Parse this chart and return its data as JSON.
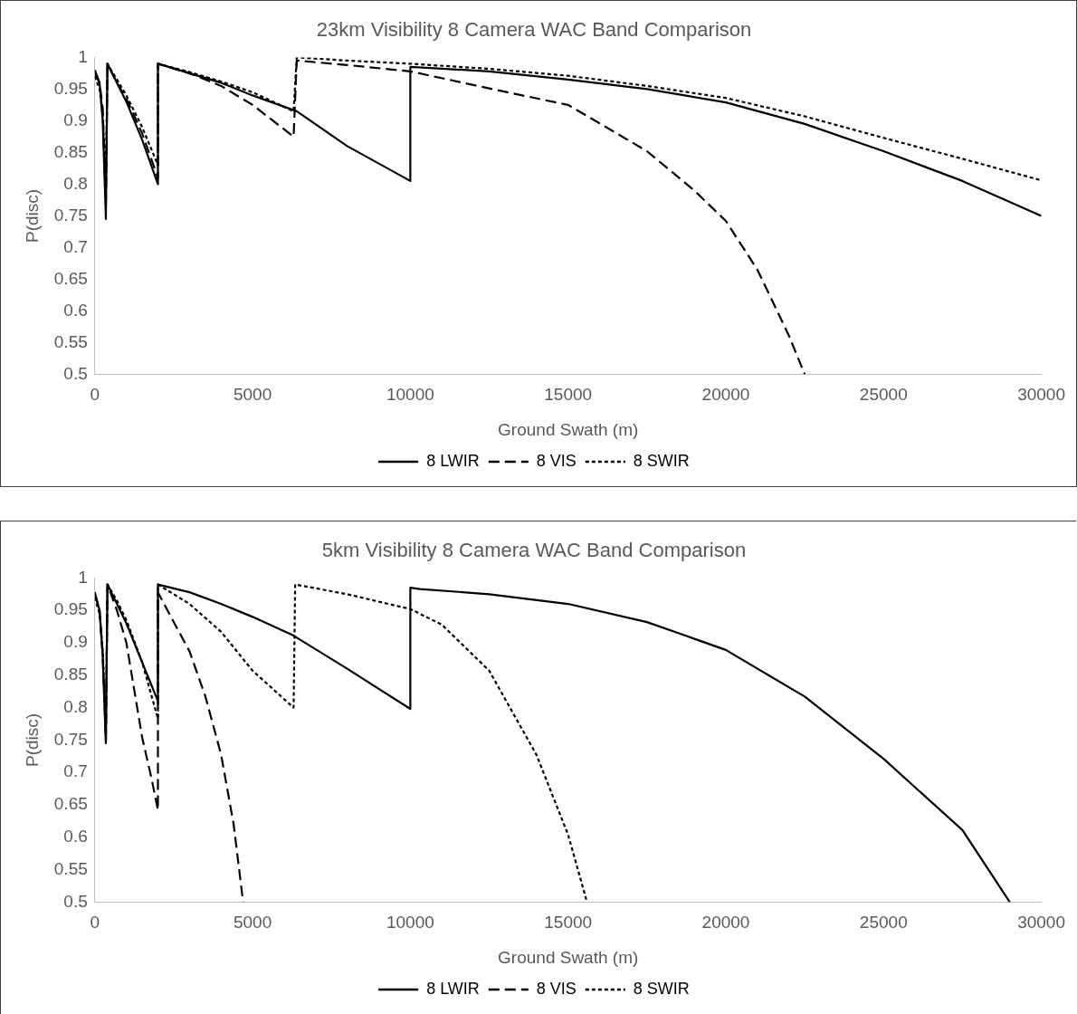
{
  "chart_data": [
    {
      "type": "line",
      "title": "23km Visibility 8 Camera WAC Band Comparison",
      "xlabel": "Ground Swath (m)",
      "ylabel": "P(disc)",
      "xlim": [
        0,
        30000
      ],
      "xticks": [
        0,
        5000,
        10000,
        15000,
        20000,
        25000,
        30000
      ],
      "ylim": [
        0.5,
        1
      ],
      "yticks": [
        0.5,
        0.55,
        0.6,
        0.65,
        0.7,
        0.75,
        0.8,
        0.85,
        0.9,
        0.95,
        1
      ],
      "grid": false,
      "legend": "bottom",
      "marker": "none",
      "series": [
        {
          "name": "8 LWIR",
          "color": "#000000",
          "line_style": "solid",
          "x": [
            0,
            150,
            250,
            350,
            400,
            700,
            1000,
            1500,
            2000,
            2000,
            3000,
            4000,
            5000,
            6400,
            8000,
            10000,
            10000,
            12500,
            15000,
            17500,
            20000,
            22500,
            25000,
            27500,
            30000
          ],
          "values": [
            0.98,
            0.96,
            0.9,
            0.745,
            0.99,
            0.96,
            0.93,
            0.87,
            0.8,
            0.99,
            0.975,
            0.96,
            0.94,
            0.915,
            0.86,
            0.805,
            0.985,
            0.978,
            0.965,
            0.95,
            0.929,
            0.895,
            0.852,
            0.805,
            0.75
          ]
        },
        {
          "name": "8 VIS",
          "color": "#000000",
          "line_style": "dashed",
          "x": [
            0,
            150,
            250,
            350,
            400,
            700,
            1000,
            1500,
            2000,
            2000,
            3000,
            4000,
            5000,
            6300,
            6400,
            8000,
            10000,
            12500,
            15000,
            16000,
            17500,
            19000,
            20000,
            21000,
            22000,
            22500
          ],
          "values": [
            0.975,
            0.96,
            0.92,
            0.77,
            0.99,
            0.96,
            0.935,
            0.88,
            0.81,
            0.99,
            0.975,
            0.955,
            0.925,
            0.875,
            0.995,
            0.988,
            0.978,
            0.951,
            0.925,
            0.896,
            0.852,
            0.79,
            0.742,
            0.665,
            0.561,
            0.5
          ]
        },
        {
          "name": "8 SWIR",
          "color": "#000000",
          "line_style": "dotted",
          "x": [
            0,
            150,
            250,
            350,
            400,
            700,
            1000,
            1500,
            2000,
            2000,
            3000,
            4000,
            5000,
            6300,
            6400,
            8000,
            10000,
            12500,
            15000,
            17500,
            20000,
            22500,
            25000,
            27500,
            30000
          ],
          "values": [
            0.97,
            0.95,
            0.91,
            0.8,
            0.99,
            0.965,
            0.94,
            0.89,
            0.83,
            0.99,
            0.977,
            0.962,
            0.945,
            0.915,
            1.0,
            0.995,
            0.99,
            0.982,
            0.971,
            0.955,
            0.936,
            0.907,
            0.873,
            0.84,
            0.806
          ]
        }
      ]
    },
    {
      "type": "line",
      "title": "5km Visibility 8 Camera WAC Band Comparison",
      "xlabel": "Ground Swath (m)",
      "ylabel": "P(disc)",
      "xlim": [
        0,
        30000
      ],
      "xticks": [
        0,
        5000,
        10000,
        15000,
        20000,
        25000,
        30000
      ],
      "ylim": [
        0.5,
        1
      ],
      "yticks": [
        0.5,
        0.55,
        0.6,
        0.65,
        0.7,
        0.75,
        0.8,
        0.85,
        0.9,
        0.95,
        1
      ],
      "grid": false,
      "legend": "bottom",
      "marker": "none",
      "series": [
        {
          "name": "8 LWIR",
          "color": "#000000",
          "line_style": "solid",
          "x": [
            0,
            150,
            250,
            350,
            400,
            700,
            1000,
            1500,
            2000,
            2000,
            3000,
            4000,
            5000,
            6300,
            8000,
            10000,
            10000,
            10300,
            12500,
            15000,
            17500,
            20000,
            22500,
            25000,
            27500,
            29000
          ],
          "values": [
            0.978,
            0.95,
            0.88,
            0.745,
            0.99,
            0.96,
            0.93,
            0.87,
            0.81,
            0.99,
            0.978,
            0.96,
            0.94,
            0.911,
            0.86,
            0.798,
            0.985,
            0.983,
            0.975,
            0.96,
            0.932,
            0.889,
            0.817,
            0.721,
            0.611,
            0.5
          ]
        },
        {
          "name": "8 VIS",
          "color": "#000000",
          "line_style": "dashed",
          "x": [
            0,
            150,
            250,
            350,
            400,
            700,
            1000,
            1500,
            1800,
            2000,
            2000,
            2500,
            3000,
            3500,
            4000,
            4400,
            4700
          ],
          "values": [
            0.975,
            0.95,
            0.88,
            0.75,
            0.99,
            0.95,
            0.9,
            0.754,
            0.69,
            0.642,
            0.978,
            0.932,
            0.887,
            0.818,
            0.728,
            0.62,
            0.5
          ]
        },
        {
          "name": "8 SWIR",
          "color": "#000000",
          "line_style": "dotted",
          "x": [
            0,
            150,
            250,
            350,
            400,
            700,
            1000,
            1500,
            2000,
            2000,
            3000,
            4000,
            5000,
            6300,
            6350,
            8000,
            10000,
            11000,
            12500,
            14000,
            15000,
            15600
          ],
          "values": [
            0.97,
            0.945,
            0.89,
            0.76,
            0.99,
            0.965,
            0.935,
            0.87,
            0.783,
            0.99,
            0.96,
            0.917,
            0.857,
            0.8,
            0.99,
            0.975,
            0.952,
            0.928,
            0.857,
            0.727,
            0.604,
            0.5
          ]
        }
      ]
    }
  ]
}
